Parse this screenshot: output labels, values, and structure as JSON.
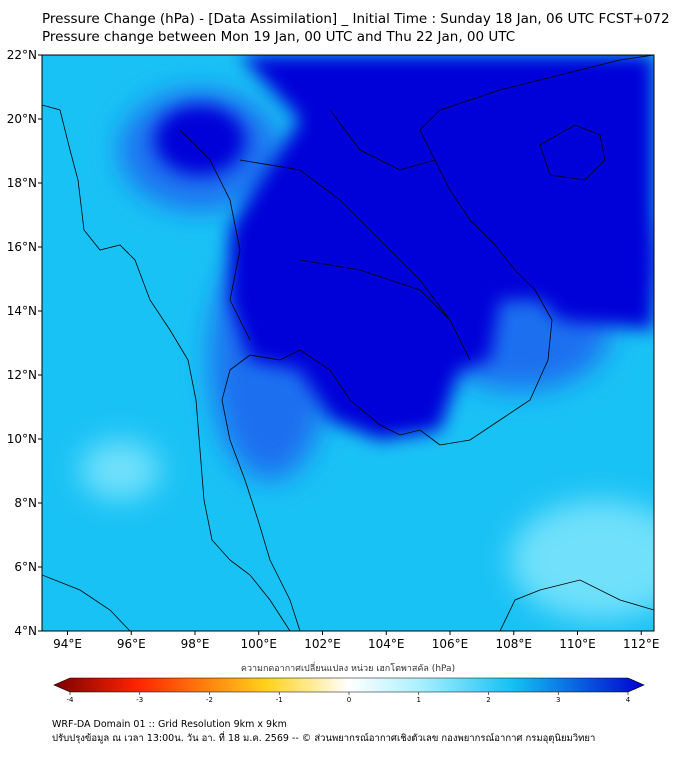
{
  "title": {
    "line1": "Pressure Change (hPa) - [Data Assimilation] _ Initial Time : Sunday 18 Jan, 06 UTC FCST+072",
    "line2": "Pressure change between Mon 19 Jan, 00 UTC and Thu 22 Jan, 00 UTC"
  },
  "map": {
    "lat_labels": [
      "22°N",
      "20°N",
      "18°N",
      "16°N",
      "14°N",
      "12°N",
      "10°N",
      "8°N",
      "6°N",
      "4°N"
    ],
    "lon_labels": [
      "94°E",
      "96°E",
      "98°E",
      "100°E",
      "102°E",
      "104°E",
      "106°E",
      "108°E",
      "110°E",
      "112°E"
    ],
    "lat_range": [
      4,
      22
    ],
    "lon_range": [
      93.2,
      112.4
    ],
    "colors": {
      "strong_rise": "#0000d8",
      "moderate_rise": "#1f6ff0",
      "weak_rise": "#19c2f5",
      "slight_rise": "#6fe0fb",
      "coastline": "#000000"
    }
  },
  "colorbar": {
    "title": "ความกดอากาศเปลี่ยนแปลง หน่วย เฮกโตพาสคัล (hPa)",
    "ticks": [
      "-4",
      "-3",
      "-2",
      "-1",
      "0",
      "1",
      "2",
      "3",
      "4"
    ],
    "range": [
      -4,
      4
    ],
    "colors": {
      "neg_end": "#7a0000",
      "neg_mid": "#ff2200",
      "neg_low": "#ffd21a",
      "zero": "#ffffff",
      "pos_low": "#aaf0ff",
      "pos_mid": "#12c0f2",
      "pos_end": "#0000d0"
    }
  },
  "footer": {
    "line1": "WRF-DA Domain 01 :: Grid Resolution 9km x 9km",
    "line2": "ปรับปรุงข้อมูล ณ เวลา 13:00น. วัน อา. ที่ 18 ม.ค. 2569 -- © ส่วนพยากรณ์อากาศเชิงตัวเลข กองพยากรณ์อากาศ กรมอุตุนิยมวิทยา"
  }
}
